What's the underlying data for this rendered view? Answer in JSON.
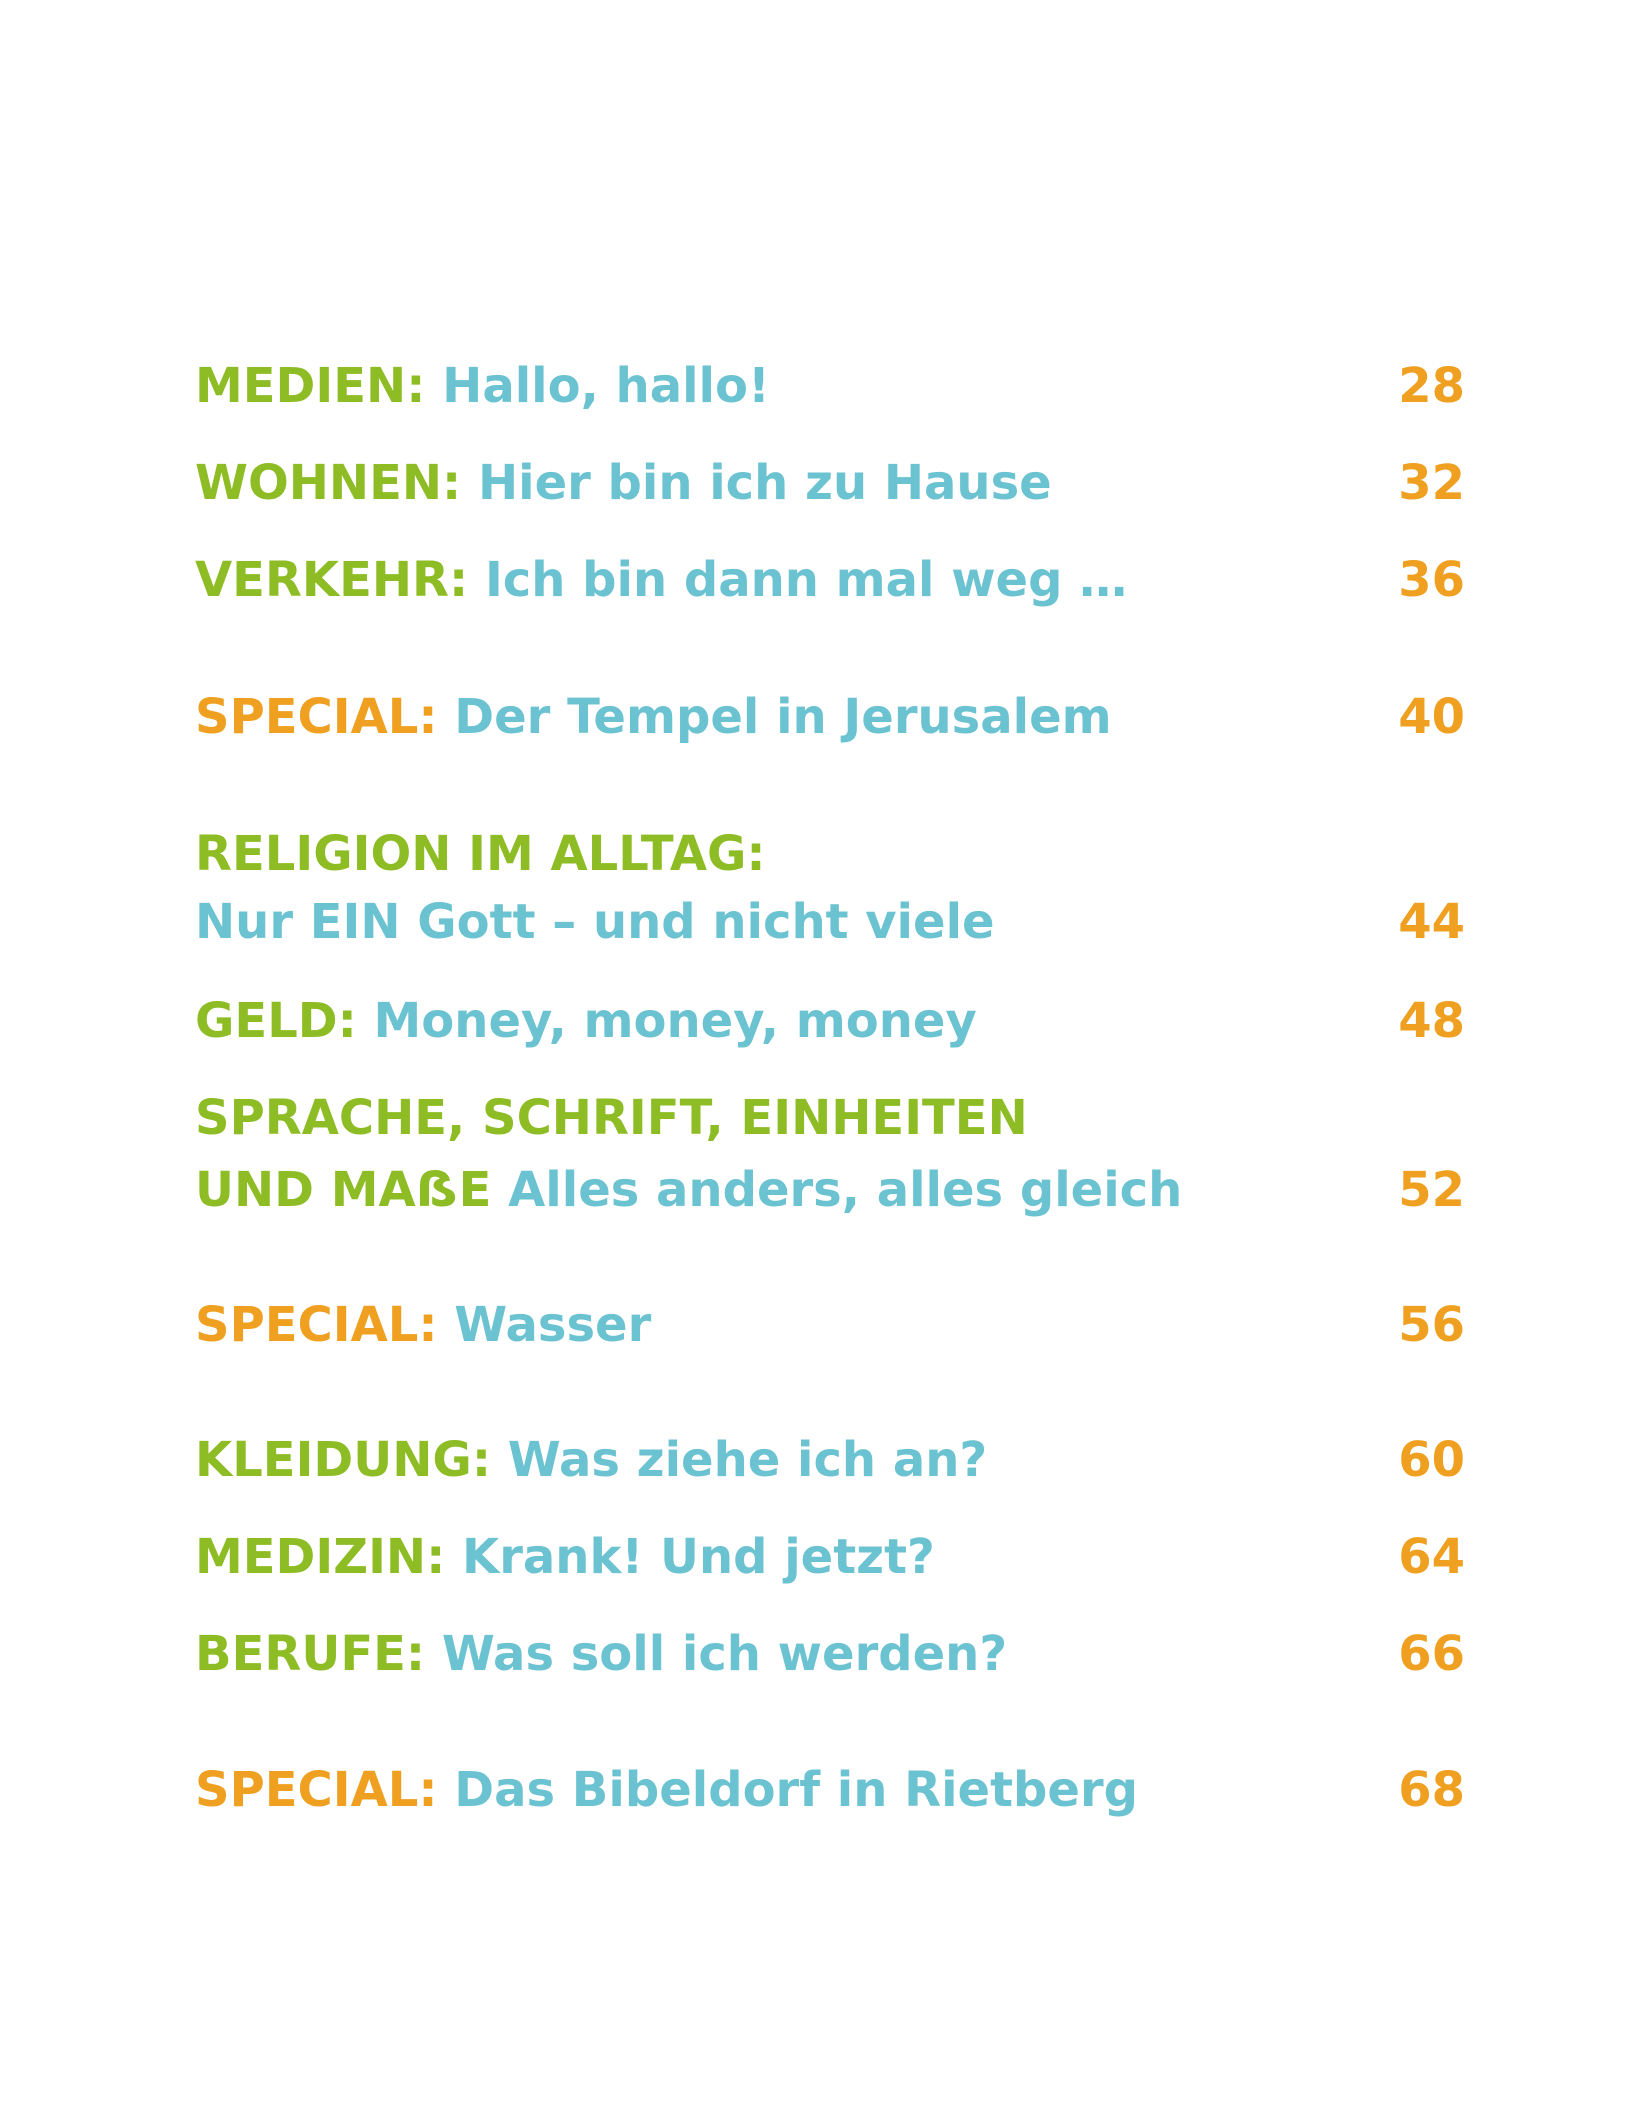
{
  "colors": {
    "category": "#8dbc24",
    "special": "#f0a020",
    "subtitle": "#6bc2d0",
    "page_number": "#f0a020"
  },
  "toc": [
    {
      "category": "MEDIEN:",
      "subtitle": "Hallo, hallo!",
      "page": "28"
    },
    {
      "category": "WOHNEN:",
      "subtitle": "Hier bin ich zu Hause",
      "page": "32"
    },
    {
      "category": "VERKEHR:",
      "subtitle": "Ich bin dann mal weg …",
      "page": "36"
    },
    {
      "category": "SPECIAL:",
      "subtitle": "Der Tempel in Jerusalem",
      "page": "40"
    },
    {
      "category": "RELIGION IM ALLTAG:",
      "subtitle": "Nur EIN Gott – und nicht viele",
      "page": "44"
    },
    {
      "category": "GELD:",
      "subtitle": "Money, money, money",
      "page": "48"
    },
    {
      "category_line1": "SPRACHE, SCHRIFT, EINHEITEN",
      "category_line2": "UND MAẞE",
      "subtitle": "Alles anders, alles gleich",
      "page": "52"
    },
    {
      "category": "SPECIAL:",
      "subtitle": "Wasser",
      "page": "56"
    },
    {
      "category": "KLEIDUNG:",
      "subtitle": "Was ziehe ich an?",
      "page": "60"
    },
    {
      "category": "MEDIZIN:",
      "subtitle": "Krank! Und jetzt?",
      "page": "64"
    },
    {
      "category": "BERUFE:",
      "subtitle": "Was soll ich werden?",
      "page": "66"
    },
    {
      "category": "SPECIAL:",
      "subtitle": "Das Bibeldorf in Rietberg",
      "page": "68"
    }
  ]
}
